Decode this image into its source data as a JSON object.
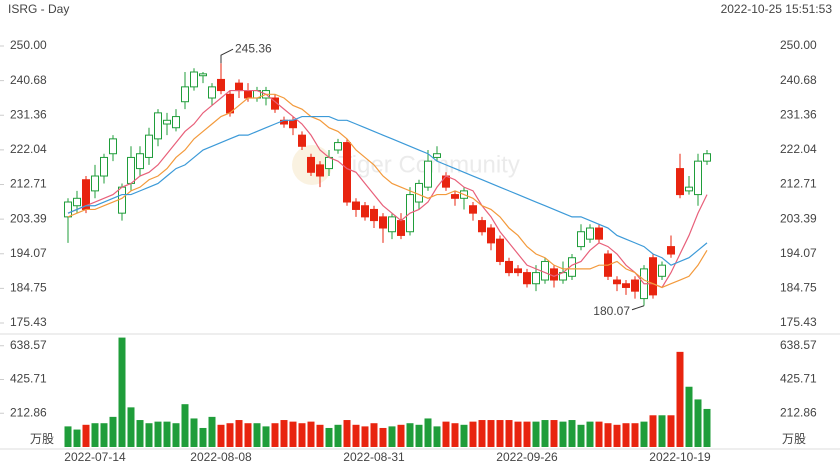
{
  "chart_data": {
    "type": "candlestick",
    "title": "ISRG - Day",
    "timestamp": "2022-10-25 15:51:53",
    "watermark": "Tiger Community",
    "categories": [
      null,
      null,
      null,
      "2022-07-14",
      null,
      null,
      null,
      null,
      null,
      null,
      null,
      null,
      null,
      null,
      null,
      null,
      null,
      "2022-08-08",
      null,
      null,
      null,
      null,
      null,
      null,
      null,
      null,
      null,
      null,
      null,
      null,
      null,
      null,
      null,
      null,
      "2022-08-31",
      null,
      null,
      null,
      null,
      null,
      null,
      null,
      null,
      null,
      null,
      null,
      null,
      null,
      null,
      null,
      null,
      "2022-09-26",
      null,
      null,
      null,
      null,
      null,
      null,
      null,
      null,
      null,
      null,
      null,
      null,
      null,
      null,
      null,
      null,
      "2022-10-19",
      null,
      null,
      null
    ],
    "open": [
      204,
      207,
      214,
      211,
      215,
      221,
      205,
      213,
      217,
      220,
      225,
      229,
      228,
      235,
      239,
      242,
      236,
      241,
      237,
      240,
      238,
      236,
      236,
      236,
      230,
      230,
      226,
      220,
      218,
      217,
      222,
      224,
      208,
      207,
      206,
      204,
      200,
      203,
      200,
      208,
      212,
      220,
      215,
      210,
      209,
      207,
      203,
      201,
      198,
      192,
      190,
      189,
      186,
      187,
      190,
      187,
      188,
      196,
      198,
      201,
      194,
      187,
      186,
      187,
      182,
      193,
      188,
      196,
      217,
      211,
      210,
      219
    ],
    "high": [
      209,
      211,
      215,
      218,
      221,
      226,
      213,
      223,
      223,
      228,
      233,
      232,
      233,
      243,
      244,
      243,
      240,
      245.36,
      238,
      241,
      240,
      239,
      239,
      237,
      231,
      231,
      227,
      221,
      219,
      222,
      225,
      225,
      209,
      208,
      207,
      205,
      205,
      205,
      212,
      214,
      222,
      223,
      216,
      211,
      212,
      208,
      204,
      202,
      199,
      193,
      191,
      190,
      191,
      193,
      191,
      192,
      194,
      202,
      202,
      202,
      195,
      188,
      187,
      188,
      191,
      194,
      192,
      199,
      221,
      215,
      221,
      222
    ],
    "low": [
      197,
      205,
      205,
      209,
      213,
      219,
      203,
      211,
      215,
      218,
      223,
      226,
      227,
      233,
      238,
      240,
      234,
      237,
      231,
      236,
      235,
      235,
      234,
      232,
      228,
      226,
      222,
      215,
      212,
      215,
      221,
      207,
      204,
      203,
      201,
      197,
      198,
      198,
      199,
      206,
      211,
      219,
      211,
      207,
      206,
      203,
      199,
      195,
      191,
      188,
      188,
      185,
      184,
      186,
      185,
      186,
      187,
      195,
      197,
      197,
      187,
      184,
      183,
      182,
      180.07,
      182,
      187,
      193,
      209,
      210,
      207,
      218
    ],
    "close": [
      208,
      209,
      206,
      215,
      220,
      225,
      212,
      220,
      221,
      226,
      232,
      230,
      231,
      239,
      243,
      242.5,
      239,
      238,
      232,
      238,
      236,
      238,
      238,
      233,
      229,
      228,
      223,
      216,
      215,
      220,
      224,
      208,
      206,
      204,
      203,
      201,
      204,
      199,
      210,
      213,
      219,
      221,
      212,
      209,
      211,
      205,
      200,
      197,
      192,
      189,
      189,
      186,
      189,
      192,
      187,
      189,
      193,
      200,
      201,
      198,
      188,
      186,
      185,
      184,
      190,
      183,
      191,
      194,
      210,
      212,
      219,
      221
    ],
    "up_color": "#1f9d3a",
    "down_color": "#e8240f",
    "ylim": [
      175.43,
      250
    ],
    "yticks": [
      175.43,
      184.75,
      194.07,
      203.39,
      212.71,
      222.04,
      231.36,
      240.68,
      {
        "value": 250,
        "label": "250.00"
      }
    ],
    "moving_averages": [
      {
        "color": "#e8607a",
        "values": [
          205,
          206,
          207,
          208,
          209,
          210,
          212,
          213,
          215,
          216,
          218,
          221,
          224,
          227,
          229,
          232,
          234,
          236,
          238,
          238,
          238,
          238,
          237,
          235,
          233,
          231,
          229,
          226,
          222,
          220,
          219,
          217,
          216,
          213,
          210,
          207,
          205,
          203,
          205,
          206,
          208,
          212,
          215,
          214,
          212,
          211,
          207,
          204,
          200,
          197,
          194,
          191,
          190,
          189,
          188,
          189,
          191,
          192,
          195,
          197,
          196,
          194,
          191,
          189,
          186,
          186,
          185,
          189,
          194,
          199,
          205,
          210
        ]
      },
      {
        "color": "#f39a3c",
        "values": [
          204,
          205,
          206,
          206,
          207,
          208,
          209,
          211,
          212,
          214,
          215,
          217,
          220,
          222,
          225,
          227,
          229,
          231,
          232,
          234,
          236,
          236,
          237,
          237,
          236,
          234,
          233,
          231,
          230,
          228,
          227,
          225,
          222,
          220,
          218,
          215,
          213,
          212,
          211,
          210,
          209,
          210,
          210,
          211,
          210,
          209,
          207,
          206,
          204,
          201,
          199,
          196,
          194,
          193,
          191,
          190,
          190,
          190,
          190,
          191,
          191,
          192,
          190,
          189,
          187,
          186,
          185,
          186,
          187,
          188,
          191,
          195
        ]
      },
      {
        "color": "#3c9ad8",
        "values": [
          205,
          206,
          207,
          207,
          208,
          209,
          210,
          210,
          211,
          212,
          213,
          215,
          217,
          218,
          220,
          222,
          223,
          224,
          225,
          226,
          226,
          227,
          228,
          229,
          230,
          230,
          231,
          231,
          231,
          231,
          230,
          230,
          229,
          228,
          227,
          226,
          225,
          224,
          223,
          222,
          221,
          219,
          218,
          217,
          216,
          215,
          214,
          213,
          212,
          211,
          210,
          209,
          208,
          207,
          206,
          205,
          204,
          204,
          203,
          202,
          201,
          199,
          198,
          197,
          196,
          194,
          193,
          191,
          192,
          193,
          195,
          197
        ]
      }
    ],
    "volume": {
      "unit_label": "万股",
      "values": [
        130,
        110,
        140,
        150,
        150,
        190,
        690,
        250,
        170,
        150,
        160,
        160,
        150,
        270,
        180,
        120,
        190,
        140,
        150,
        170,
        150,
        150,
        130,
        150,
        170,
        160,
        150,
        160,
        140,
        120,
        140,
        170,
        140,
        130,
        150,
        120,
        130,
        140,
        150,
        140,
        180,
        130,
        160,
        150,
        140,
        160,
        170,
        170,
        170,
        170,
        160,
        160,
        160,
        170,
        170,
        160,
        170,
        140,
        160,
        160,
        150,
        140,
        150,
        150,
        160,
        200,
        200,
        200,
        600,
        380,
        300,
        240
      ],
      "ylim": [
        0,
        700
      ],
      "yticks": [
        212.86,
        425.71,
        638.57
      ]
    }
  }
}
